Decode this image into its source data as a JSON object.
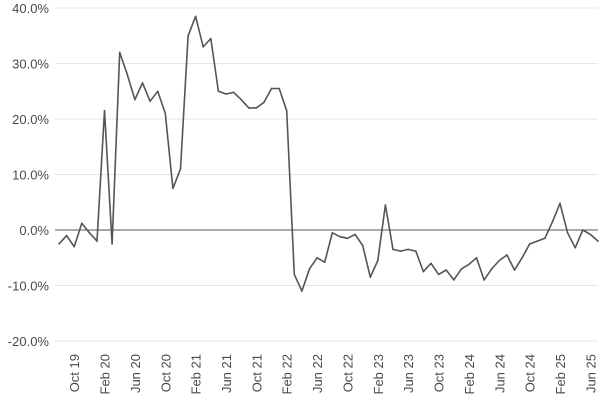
{
  "chart_data": {
    "type": "line",
    "title": "",
    "xlabel": "",
    "ylabel": "",
    "ylim": [
      -20,
      40
    ],
    "yticks": [
      {
        "value": 40,
        "label": "40.0%"
      },
      {
        "value": 30,
        "label": "30.0%"
      },
      {
        "value": 20,
        "label": "20.0%"
      },
      {
        "value": 10,
        "label": "10.0%"
      },
      {
        "value": 0,
        "label": "0.0%"
      },
      {
        "value": -10,
        "label": "-10.0%"
      },
      {
        "value": -20,
        "label": "-20.0%"
      }
    ],
    "xticks": [
      "Oct 19",
      "Feb 20",
      "Jun 20",
      "Oct 20",
      "Feb 21",
      "Jun 21",
      "Oct 21",
      "Feb 22",
      "Jun 22",
      "Oct 22",
      "Feb 23",
      "Jun 23",
      "Oct 23",
      "Feb 24",
      "Jun 24",
      "Oct 24",
      "Feb 25",
      "Jun 25"
    ],
    "grid": "horizontal",
    "series": [
      {
        "color": "#555555",
        "points": [
          {
            "x": "Aug 19",
            "y": -2.5
          },
          {
            "x": "Sep 19",
            "y": -1.0
          },
          {
            "x": "Oct 19",
            "y": -3.0
          },
          {
            "x": "Nov 19",
            "y": 1.2
          },
          {
            "x": "Dec 19",
            "y": -0.5
          },
          {
            "x": "Jan 20",
            "y": -2.0
          },
          {
            "x": "Feb 20",
            "y": 21.5
          },
          {
            "x": "Mar 20",
            "y": -2.5
          },
          {
            "x": "Apr 20",
            "y": 32.0
          },
          {
            "x": "May 20",
            "y": 28.0
          },
          {
            "x": "Jun 20",
            "y": 23.5
          },
          {
            "x": "Jul 20",
            "y": 26.5
          },
          {
            "x": "Aug 20",
            "y": 23.2
          },
          {
            "x": "Sep 20",
            "y": 25.0
          },
          {
            "x": "Oct 20",
            "y": 21.0
          },
          {
            "x": "Nov 20",
            "y": 7.5
          },
          {
            "x": "Dec 20",
            "y": 11.0
          },
          {
            "x": "Jan 21",
            "y": 35.0
          },
          {
            "x": "Feb 21",
            "y": 38.5
          },
          {
            "x": "Mar 21",
            "y": 33.0
          },
          {
            "x": "Apr 21",
            "y": 34.5
          },
          {
            "x": "May 21",
            "y": 25.0
          },
          {
            "x": "Jun 21",
            "y": 24.5
          },
          {
            "x": "Jul 21",
            "y": 24.8
          },
          {
            "x": "Aug 21",
            "y": 23.5
          },
          {
            "x": "Sep 21",
            "y": 22.0
          },
          {
            "x": "Oct 21",
            "y": 22.0
          },
          {
            "x": "Nov 21",
            "y": 23.0
          },
          {
            "x": "Dec 21",
            "y": 25.5
          },
          {
            "x": "Jan 22",
            "y": 25.5
          },
          {
            "x": "Feb 22",
            "y": 21.5
          },
          {
            "x": "Mar 22",
            "y": -8.0
          },
          {
            "x": "Apr 22",
            "y": -11.0
          },
          {
            "x": "May 22",
            "y": -7.0
          },
          {
            "x": "Jun 22",
            "y": -5.0
          },
          {
            "x": "Jul 22",
            "y": -5.8
          },
          {
            "x": "Aug 22",
            "y": -0.5
          },
          {
            "x": "Sep 22",
            "y": -1.2
          },
          {
            "x": "Oct 22",
            "y": -1.5
          },
          {
            "x": "Nov 22",
            "y": -0.8
          },
          {
            "x": "Dec 22",
            "y": -2.8
          },
          {
            "x": "Jan 23",
            "y": -8.5
          },
          {
            "x": "Feb 23",
            "y": -5.5
          },
          {
            "x": "Mar 23",
            "y": 4.5
          },
          {
            "x": "Apr 23",
            "y": -3.5
          },
          {
            "x": "May 23",
            "y": -3.8
          },
          {
            "x": "Jun 23",
            "y": -3.5
          },
          {
            "x": "Jul 23",
            "y": -3.8
          },
          {
            "x": "Aug 23",
            "y": -7.5
          },
          {
            "x": "Sep 23",
            "y": -6.0
          },
          {
            "x": "Oct 23",
            "y": -8.0
          },
          {
            "x": "Nov 23",
            "y": -7.2
          },
          {
            "x": "Dec 23",
            "y": -9.0
          },
          {
            "x": "Jan 24",
            "y": -7.0
          },
          {
            "x": "Feb 24",
            "y": -6.2
          },
          {
            "x": "Mar 24",
            "y": -5.0
          },
          {
            "x": "Apr 24",
            "y": -9.0
          },
          {
            "x": "May 24",
            "y": -7.0
          },
          {
            "x": "Jun 24",
            "y": -5.5
          },
          {
            "x": "Jul 24",
            "y": -4.5
          },
          {
            "x": "Aug 24",
            "y": -7.2
          },
          {
            "x": "Sep 24",
            "y": -5.0
          },
          {
            "x": "Oct 24",
            "y": -2.5
          },
          {
            "x": "Nov 24",
            "y": -2.0
          },
          {
            "x": "Dec 24",
            "y": -1.5
          },
          {
            "x": "Jan 25",
            "y": 1.5
          },
          {
            "x": "Feb 25",
            "y": 4.8
          },
          {
            "x": "Mar 25",
            "y": -0.5
          },
          {
            "x": "Apr 25",
            "y": -3.2
          },
          {
            "x": "May 25",
            "y": 0.0
          },
          {
            "x": "Jun 25",
            "y": -0.8
          },
          {
            "x": "Jul 25",
            "y": -2.0
          }
        ]
      }
    ]
  }
}
